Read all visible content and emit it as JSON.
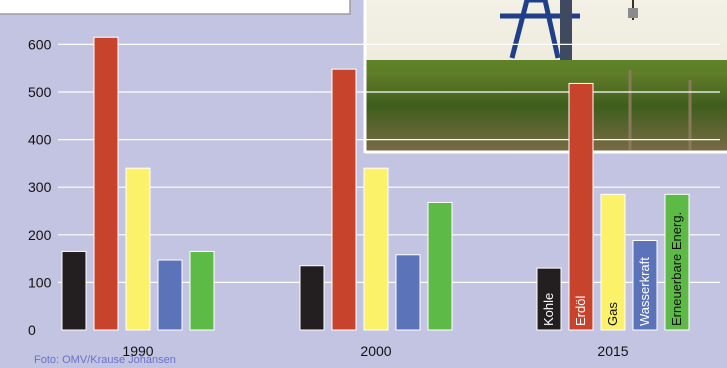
{
  "chart_data": {
    "type": "bar",
    "categories": [
      "1990",
      "2000",
      "2015"
    ],
    "series": [
      {
        "name": "Kohle",
        "color": "#231f20",
        "values": [
          165,
          135,
          130
        ]
      },
      {
        "name": "Erdöl",
        "color": "#c8432b",
        "values": [
          615,
          548,
          518
        ]
      },
      {
        "name": "Gas",
        "color": "#fcf26a",
        "values": [
          340,
          340,
          285
        ]
      },
      {
        "name": "Wasserkraft",
        "color": "#5b73b8",
        "values": [
          147,
          158,
          188
        ]
      },
      {
        "name": "Erneuerbare Energ.",
        "color": "#5dba47",
        "values": [
          165,
          268,
          285
        ]
      }
    ],
    "yticks": [
      0,
      100,
      200,
      300,
      400,
      500,
      600
    ],
    "ylim": [
      0,
      640
    ],
    "grid": true,
    "legend": "labels inside the 2015 bars"
  },
  "credit": "Foto: OMV/Krause Johansen"
}
